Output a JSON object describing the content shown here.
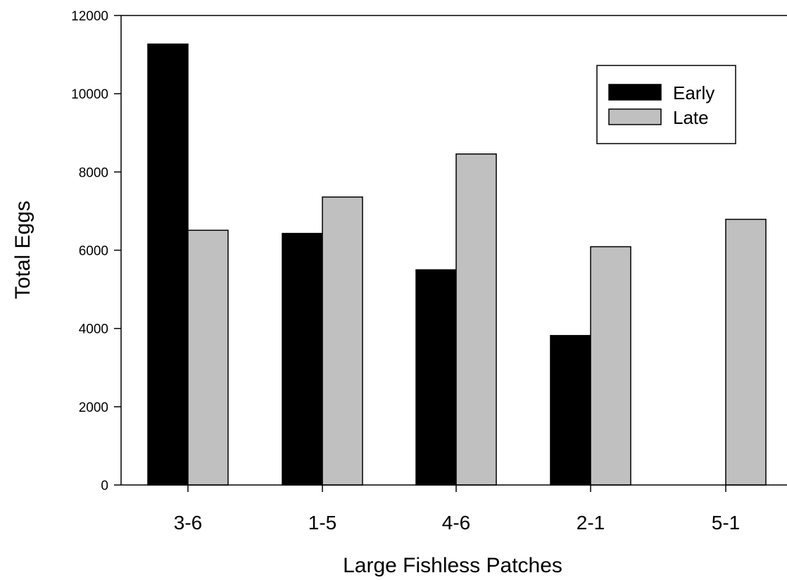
{
  "chart_data": {
    "type": "bar",
    "title": "",
    "xlabel": "Large Fishless Patches",
    "ylabel": "Total Eggs",
    "categories": [
      "3-6",
      "1-5",
      "4-6",
      "2-1",
      "5-1"
    ],
    "series": [
      {
        "name": "Early",
        "color": "#000000",
        "values": [
          11270,
          6430,
          5500,
          3820,
          0
        ]
      },
      {
        "name": "Late",
        "color": "#c0c0c0",
        "values": [
          6510,
          7360,
          8460,
          6090,
          6790
        ]
      }
    ],
    "ylim": [
      0,
      12000
    ],
    "yticks": [
      0,
      2000,
      4000,
      6000,
      8000,
      10000,
      12000
    ],
    "grid": false,
    "legend_position": "top-right"
  }
}
